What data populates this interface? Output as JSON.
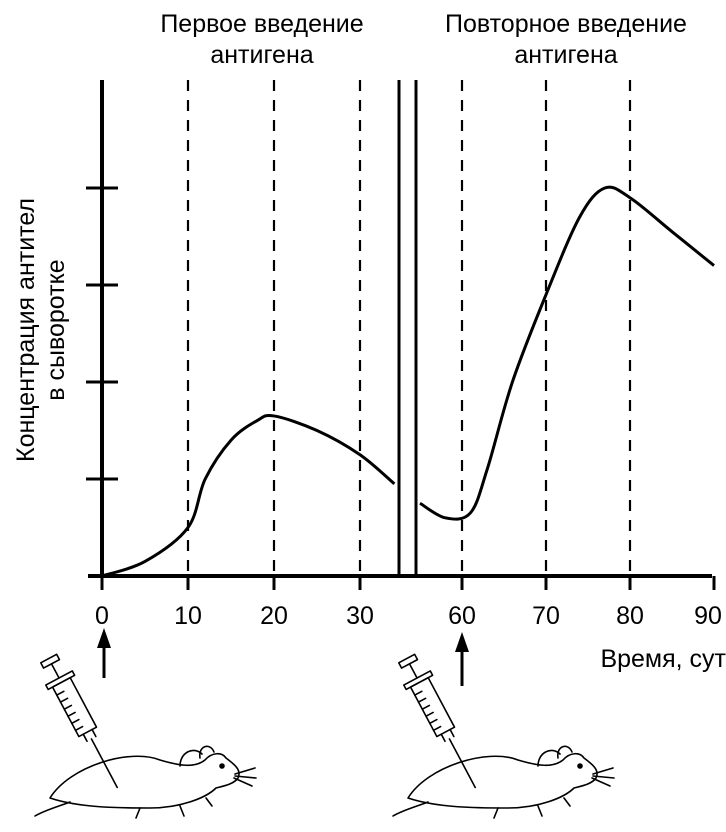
{
  "chart_data": {
    "type": "line",
    "title_left": [
      "Первое введение",
      "антигена"
    ],
    "title_right": [
      "Повторное введение",
      "антигена"
    ],
    "xlabel": "Время, сут",
    "ylabel": [
      "Концентрация антител",
      "в сыворотке"
    ],
    "x_ticks_left": [
      "0",
      "10",
      "20",
      "30"
    ],
    "x_ticks_right": [
      "60",
      "70",
      "80",
      "90"
    ],
    "x_tick_values_left": [
      0,
      10,
      20,
      30
    ],
    "x_tick_values_right": [
      60,
      70,
      80,
      90
    ],
    "dashed_x_left": [
      10,
      20,
      30
    ],
    "dashed_x_right": [
      60,
      70,
      80
    ],
    "y_ticks_count": 4,
    "ylim": [
      0,
      4
    ],
    "axis_break": "between 30 and 60",
    "series": [
      {
        "segment": "primary",
        "points": [
          [
            0,
            0.0
          ],
          [
            5,
            0.15
          ],
          [
            10,
            0.5
          ],
          [
            12,
            1.0
          ],
          [
            15,
            1.4
          ],
          [
            18,
            1.6
          ],
          [
            20,
            1.65
          ],
          [
            25,
            1.5
          ],
          [
            30,
            1.25
          ],
          [
            34,
            0.95
          ]
        ]
      },
      {
        "segment": "secondary",
        "points": [
          [
            55,
            0.75
          ],
          [
            58,
            0.6
          ],
          [
            61,
            0.65
          ],
          [
            63,
            1.1
          ],
          [
            66,
            2.0
          ],
          [
            70,
            2.9
          ],
          [
            74,
            3.7
          ],
          [
            77,
            4.0
          ],
          [
            80,
            3.9
          ],
          [
            85,
            3.55
          ],
          [
            90,
            3.2
          ]
        ]
      }
    ],
    "markers": [
      {
        "x": 0,
        "icon": "arrow-up-icon",
        "illustration": "syringe-mouse-icon"
      },
      {
        "x": 60,
        "icon": "arrow-up-icon",
        "illustration": "syringe-mouse-icon"
      }
    ]
  }
}
